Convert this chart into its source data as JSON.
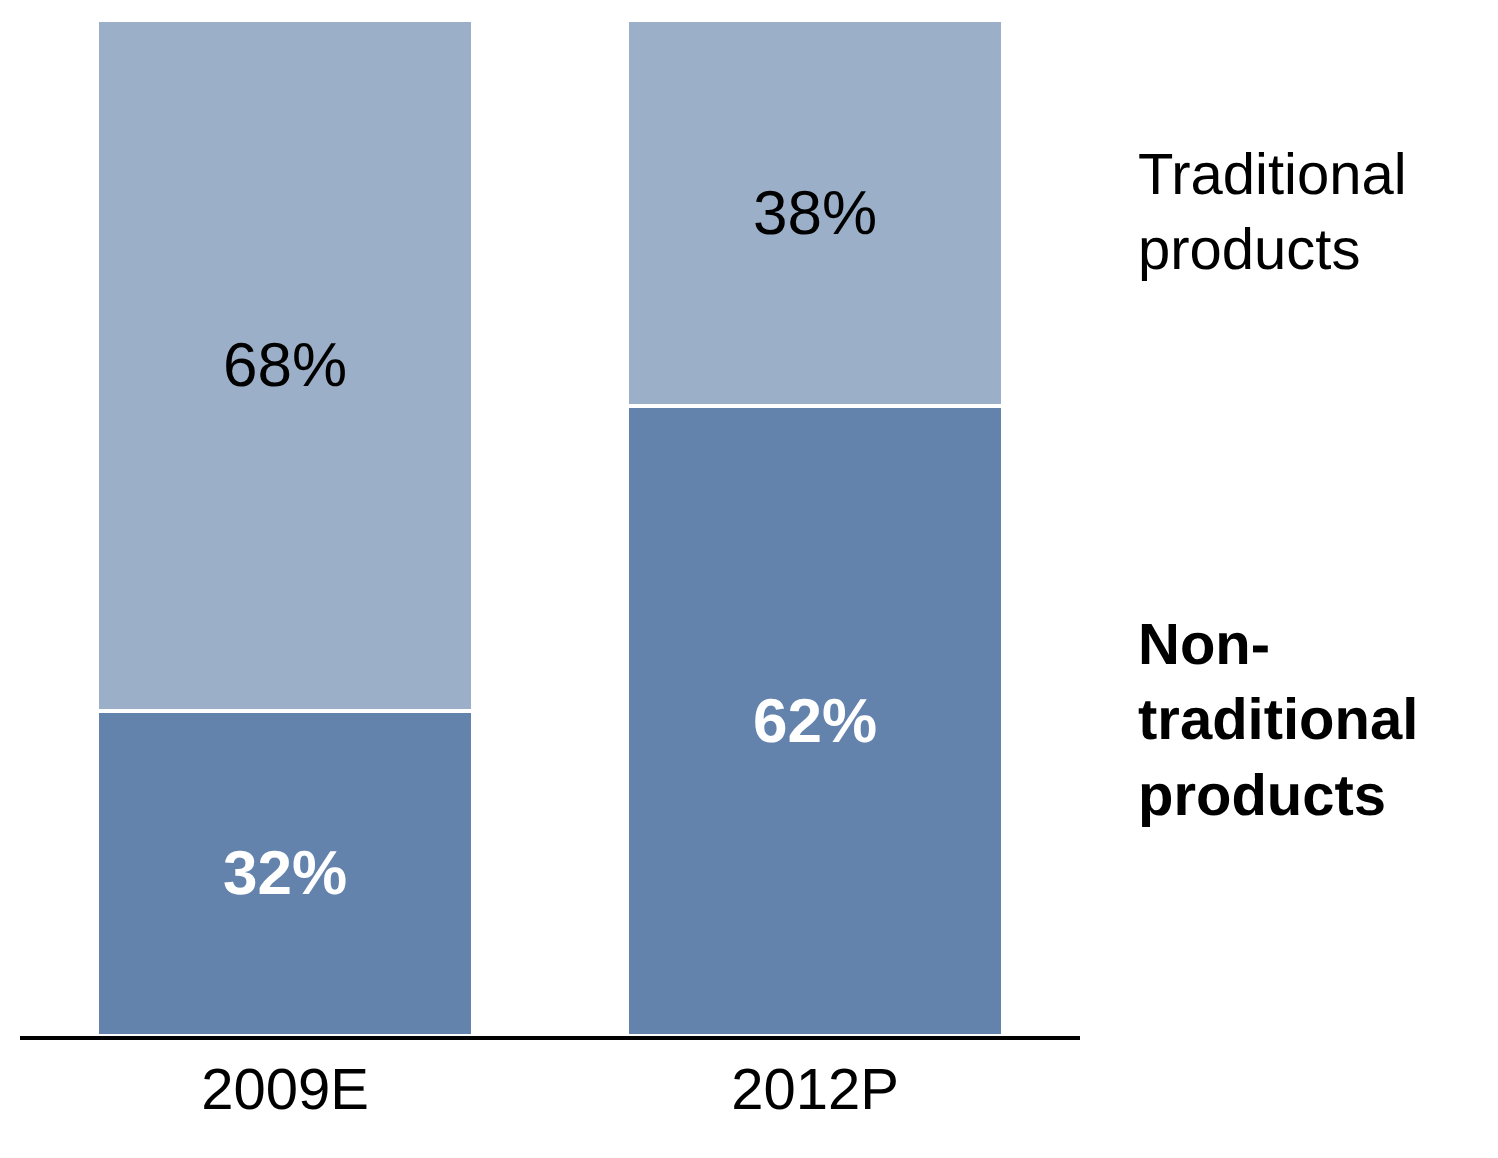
{
  "chart_data": {
    "type": "bar",
    "stacked": true,
    "categories": [
      "2009E",
      "2012P"
    ],
    "tick_labels": "x",
    "legend": false,
    "series": [
      {
        "name": "Non-traditional products",
        "color": "#6383ad",
        "values": [
          32,
          62
        ],
        "value_labels": [
          "32%",
          "62%"
        ]
      },
      {
        "name": "Traditional products",
        "color": "#9bafc8",
        "values": [
          68,
          38
        ],
        "value_labels": [
          "68%",
          "38%"
        ]
      }
    ]
  }
}
